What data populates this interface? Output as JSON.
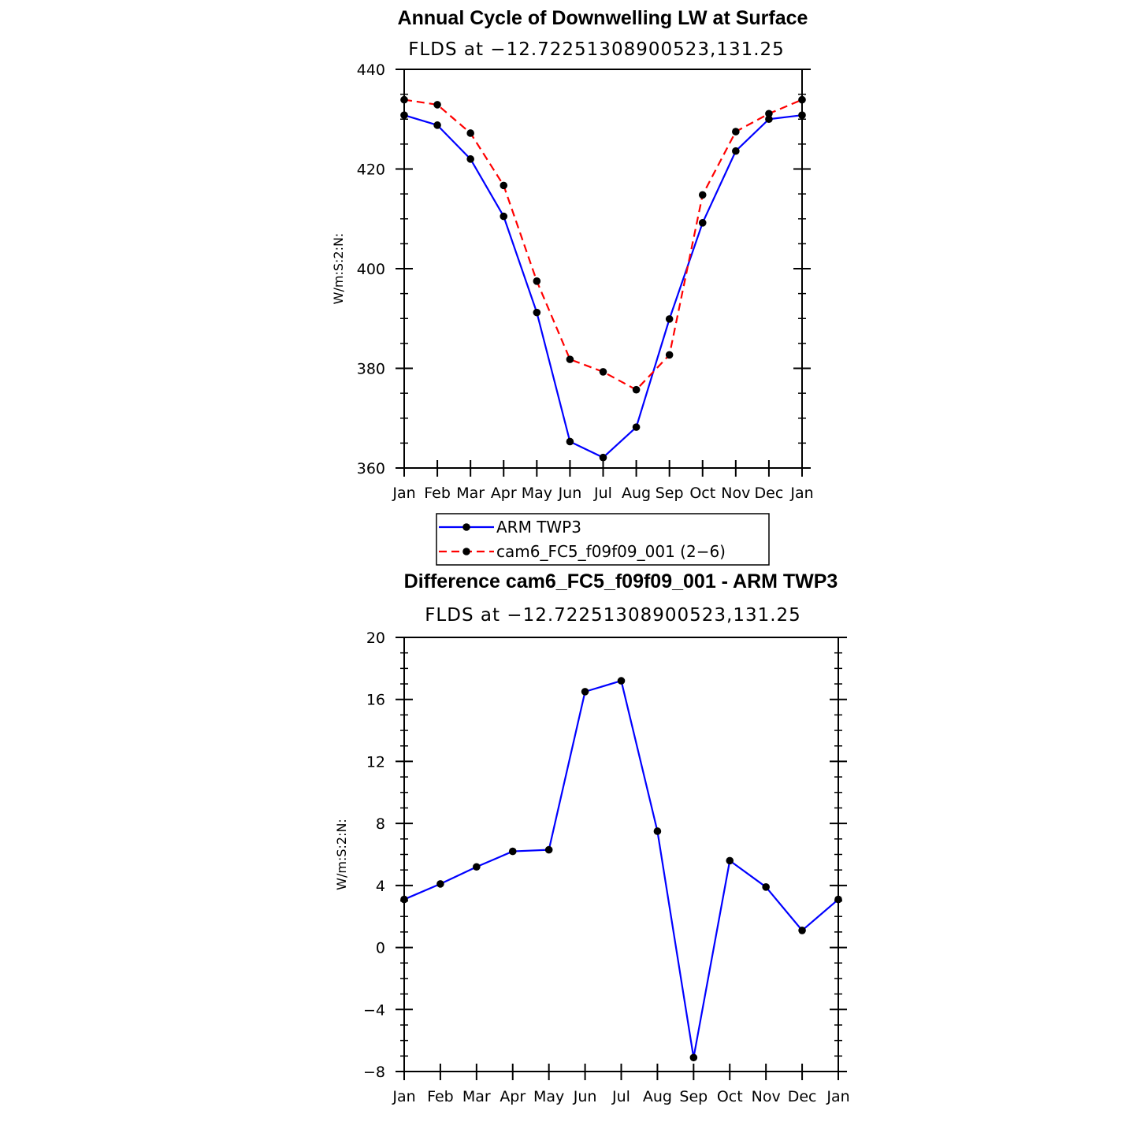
{
  "chart_data": [
    {
      "type": "line",
      "title": "Annual Cycle of Downwelling LW at Surface",
      "subtitle": "FLDS at −12.72251308900523,131.25",
      "xlabel": "",
      "ylabel": "W/m:S:2:N:",
      "categories": [
        "Jan",
        "Feb",
        "Mar",
        "Apr",
        "May",
        "Jun",
        "Jul",
        "Aug",
        "Sep",
        "Oct",
        "Nov",
        "Dec",
        "Jan"
      ],
      "ylim": [
        360,
        440
      ],
      "yticks": [
        360,
        380,
        400,
        420,
        440
      ],
      "ytick_labels": [
        "360",
        "380",
        "400",
        "420",
        "440"
      ],
      "series": [
        {
          "name": "ARM TWP3",
          "color": "#0000ff",
          "dash": "solid",
          "values": [
            430.8,
            428.8,
            422.0,
            410.5,
            391.2,
            365.3,
            362.1,
            368.2,
            389.9,
            409.2,
            423.6,
            430.0,
            430.8
          ]
        },
        {
          "name": "cam6_FC5_f09f09_001 (2−6)",
          "color": "#ff0000",
          "dash": "dashed",
          "values": [
            433.9,
            432.9,
            427.2,
            416.7,
            397.5,
            381.8,
            379.3,
            375.7,
            382.7,
            414.8,
            427.5,
            431.1,
            433.9
          ]
        }
      ],
      "legend": "below"
    },
    {
      "type": "line",
      "title": "Difference cam6_FC5_f09f09_001 - ARM TWP3",
      "subtitle": "FLDS at −12.72251308900523,131.25",
      "xlabel": "",
      "ylabel": "W/m:S:2:N:",
      "categories": [
        "Jan",
        "Feb",
        "Mar",
        "Apr",
        "May",
        "Jun",
        "Jul",
        "Aug",
        "Sep",
        "Oct",
        "Nov",
        "Dec",
        "Jan"
      ],
      "ylim": [
        -8,
        20
      ],
      "yticks": [
        -8,
        -4,
        0,
        4,
        8,
        12,
        16,
        20
      ],
      "ytick_labels": [
        "−8",
        "−4",
        "0",
        "4",
        "8",
        "12",
        "16",
        "20"
      ],
      "series": [
        {
          "name": "Difference",
          "color": "#0000ff",
          "dash": "solid",
          "values": [
            3.1,
            4.1,
            5.2,
            6.2,
            6.3,
            16.5,
            17.2,
            7.5,
            -7.1,
            5.6,
            3.9,
            1.1,
            3.1
          ]
        }
      ]
    }
  ]
}
